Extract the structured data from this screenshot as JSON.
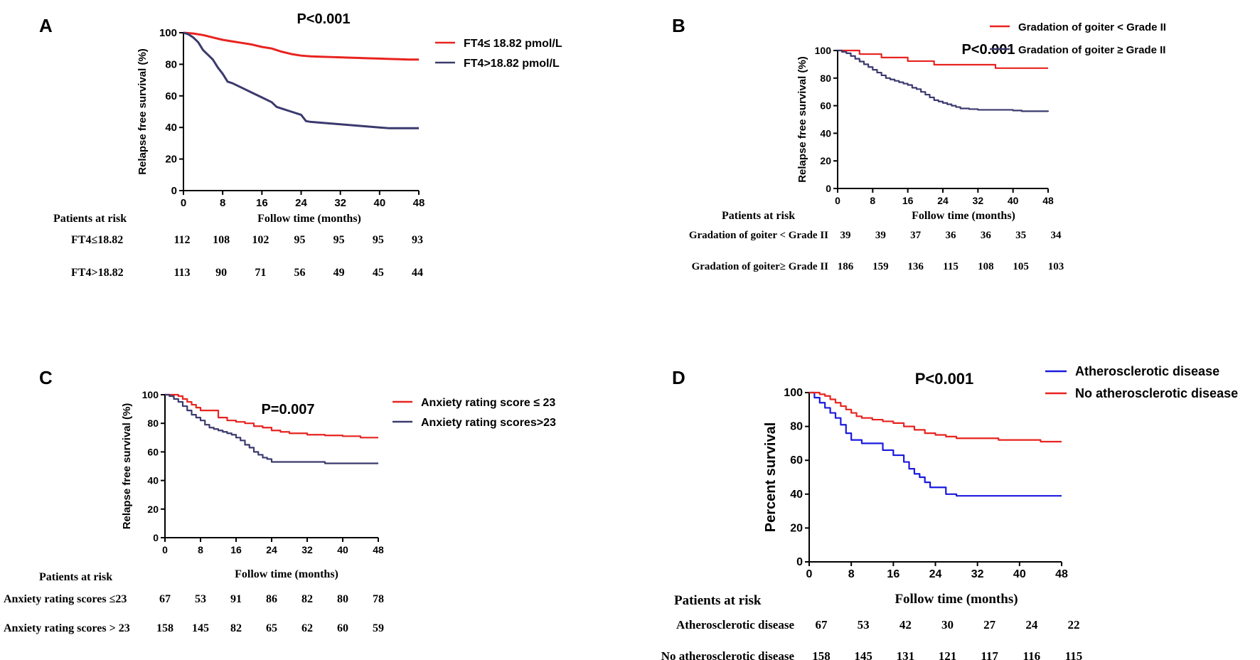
{
  "colors": {
    "red": "#e8231f",
    "navy": "#3a3a6e",
    "blue": "#1a1adf",
    "axis": "#000000"
  },
  "chart_data": [
    {
      "panel": "A",
      "type": "line",
      "title": "P<0.001",
      "xlabel": "Follow time (months)",
      "ylabel": "Relapse free survival (%)",
      "xlim": [
        0,
        48
      ],
      "ylim": [
        0,
        100
      ],
      "xticks": [
        "0",
        "8",
        "16",
        "24",
        "32",
        "40",
        "48"
      ],
      "yticks": [
        "0",
        "20",
        "40",
        "60",
        "80",
        "100"
      ],
      "legend_position": "top-right",
      "series": [
        {
          "name": "FT4≤ 18.82 pmol/L",
          "color": "#e8231f",
          "x": [
            0,
            2,
            4,
            6,
            8,
            10,
            12,
            14,
            16,
            18,
            20,
            22,
            24,
            26,
            28,
            30,
            32,
            34,
            36,
            38,
            40,
            42,
            44,
            46,
            48
          ],
          "y": [
            100,
            99.5,
            98.5,
            97,
            95.5,
            94.5,
            93.5,
            92.5,
            91,
            90,
            88,
            86.5,
            85.5,
            85,
            84.8,
            84.6,
            84.4,
            84.2,
            84,
            83.8,
            83.6,
            83.4,
            83.2,
            83,
            83
          ]
        },
        {
          "name": "FT4>18.82 pmol/L",
          "color": "#3a3a6e",
          "x": [
            0,
            1,
            2,
            3,
            4,
            5,
            6,
            7,
            8,
            9,
            10,
            12,
            14,
            16,
            18,
            19,
            20,
            22,
            24,
            25,
            26,
            28,
            30,
            32,
            34,
            36,
            38,
            40,
            42,
            44,
            46,
            48
          ],
          "y": [
            100,
            99,
            97,
            94,
            89,
            86,
            83,
            78,
            74,
            69,
            68,
            65,
            62,
            59,
            56,
            53,
            52,
            50,
            48,
            44,
            43.5,
            43,
            42.5,
            42,
            41.5,
            41,
            40.5,
            40,
            39.5,
            39.5,
            39.5,
            39.5
          ]
        }
      ],
      "risk_table": {
        "header": "Patients at risk",
        "rows": [
          {
            "label": "FT4≤18.82",
            "values": [
              "112",
              "108",
              "102",
              "95",
              "95",
              "95",
              "93"
            ]
          },
          {
            "label": "FT4>18.82",
            "values": [
              "113",
              "90",
              "71",
              "56",
              "49",
              "45",
              "44"
            ]
          }
        ]
      }
    },
    {
      "panel": "B",
      "type": "line",
      "title": "P<0.001",
      "xlabel": "Follow time (months)",
      "ylabel": "Relapse free survival (%)",
      "xlim": [
        0,
        48
      ],
      "ylim": [
        0,
        100
      ],
      "xticks": [
        "0",
        "8",
        "16",
        "24",
        "32",
        "40",
        "48"
      ],
      "yticks": [
        "0",
        "20",
        "40",
        "60",
        "80",
        "100"
      ],
      "legend_position": "top-right",
      "series": [
        {
          "name": "Gradation of goiter < Grade II",
          "color": "#e8231f",
          "step": true,
          "x": [
            0,
            5,
            8,
            10,
            14,
            16,
            22,
            36,
            48
          ],
          "y": [
            100,
            97.4,
            97.4,
            94.9,
            94.9,
            92.3,
            89.7,
            87.2,
            87.2
          ]
        },
        {
          "name": "Gradation of goiter ≥  Grade II",
          "color": "#3a3a6e",
          "step": true,
          "x": [
            0,
            1,
            2,
            3,
            4,
            5,
            6,
            7,
            8,
            9,
            10,
            11,
            12,
            13,
            14,
            15,
            16,
            17,
            18,
            19,
            20,
            21,
            22,
            23,
            24,
            25,
            26,
            27,
            28,
            30,
            32,
            34,
            36,
            38,
            40,
            42,
            44,
            46,
            48
          ],
          "y": [
            100,
            99,
            98,
            96,
            94,
            92,
            90,
            88,
            86,
            84,
            82,
            80,
            79,
            78,
            77,
            76,
            75,
            73,
            72,
            70,
            68,
            66,
            64,
            63,
            62,
            61,
            60,
            59,
            58,
            57.5,
            57,
            57,
            57,
            57,
            56.5,
            56,
            56,
            56,
            55.6
          ]
        }
      ],
      "risk_table": {
        "header": "Patients at risk",
        "rows": [
          {
            "label": "Gradation of goiter < Grade II",
            "values": [
              "39",
              "39",
              "37",
              "36",
              "36",
              "35",
              "34"
            ]
          },
          {
            "label": "Gradation of goiter≥ Grade II",
            "values": [
              "186",
              "159",
              "136",
              "115",
              "108",
              "105",
              "103"
            ]
          }
        ]
      }
    },
    {
      "panel": "C",
      "type": "line",
      "title": "P=0.007",
      "xlabel": "Follow time (months)",
      "ylabel": "Relapse free survival (%)",
      "xlim": [
        0,
        48
      ],
      "ylim": [
        0,
        100
      ],
      "xticks": [
        "0",
        "8",
        "16",
        "24",
        "32",
        "40",
        "48"
      ],
      "yticks": [
        "0",
        "20",
        "40",
        "60",
        "80",
        "100"
      ],
      "legend_position": "top-right",
      "series": [
        {
          "name": "Anxiety rating score ≤  23",
          "color": "#e8231f",
          "step": true,
          "x": [
            0,
            3,
            4,
            5,
            6,
            7,
            8,
            12,
            14,
            16,
            18,
            20,
            22,
            24,
            26,
            28,
            32,
            36,
            40,
            44,
            48
          ],
          "y": [
            100,
            99,
            97,
            95,
            93,
            91,
            89,
            84,
            82,
            81,
            80,
            78,
            77,
            75,
            74,
            73,
            72,
            71.5,
            71,
            70,
            70
          ]
        },
        {
          "name": "Anxiety rating scores>23",
          "color": "#3a3a6e",
          "step": true,
          "x": [
            0,
            1,
            2,
            3,
            4,
            5,
            6,
            7,
            8,
            9,
            10,
            11,
            12,
            13,
            14,
            15,
            16,
            17,
            18,
            19,
            20,
            21,
            22,
            23,
            24,
            28,
            32,
            36,
            40,
            48
          ],
          "y": [
            100,
            99,
            97,
            95,
            92,
            89,
            86,
            84,
            82,
            79,
            77,
            76,
            75,
            74,
            73,
            72,
            70,
            68,
            65,
            63,
            60,
            58,
            56,
            55,
            53,
            53,
            53,
            52,
            52,
            52
          ]
        }
      ],
      "risk_table": {
        "header": "Patients at risk",
        "rows": [
          {
            "label": "Anxiety rating  scores ≤23",
            "values": [
              "67",
              "53",
              "91",
              "86",
              "82",
              "80",
              "78"
            ]
          },
          {
            "label": "Anxiety rating scores > 23",
            "values": [
              "158",
              "145",
              "82",
              "65",
              "62",
              "60",
              "59"
            ]
          }
        ]
      }
    },
    {
      "panel": "D",
      "type": "line",
      "title": "P<0.001",
      "xlabel": "Follow time (months)",
      "ylabel": "Percent survival",
      "xlim": [
        0,
        48
      ],
      "ylim": [
        0,
        100
      ],
      "xticks": [
        "0",
        "8",
        "16",
        "24",
        "32",
        "40",
        "48"
      ],
      "yticks": [
        "0",
        "20",
        "40",
        "60",
        "80",
        "100"
      ],
      "legend_position": "top-right",
      "series": [
        {
          "name": "Atherosclerotic disease",
          "color": "#1a1adf",
          "step": true,
          "x": [
            0,
            1,
            2,
            3,
            4,
            5,
            6,
            7,
            8,
            10,
            14,
            16,
            18,
            19,
            20,
            21,
            22,
            23,
            24,
            26,
            28,
            30,
            48
          ],
          "y": [
            100,
            97,
            94,
            91,
            88,
            85,
            81,
            76,
            72,
            70,
            66,
            63,
            59,
            55,
            52,
            50,
            47,
            44,
            44,
            40,
            39,
            39,
            39
          ]
        },
        {
          "name": "No atherosclerotic disease",
          "color": "#e8231f",
          "step": true,
          "x": [
            0,
            2,
            3,
            4,
            5,
            6,
            7,
            8,
            9,
            10,
            12,
            14,
            16,
            18,
            20,
            22,
            24,
            26,
            28,
            32,
            36,
            40,
            44,
            48
          ],
          "y": [
            100,
            99,
            98,
            96,
            94,
            92,
            90,
            88,
            86,
            85,
            84,
            83,
            82,
            80,
            78,
            76,
            75,
            74,
            73,
            73,
            72,
            72,
            71,
            71
          ]
        }
      ],
      "risk_table": {
        "header": "Patients at risk",
        "rows": [
          {
            "label": "Atherosclerotic disease",
            "values": [
              "67",
              "53",
              "42",
              "30",
              "27",
              "24",
              "22"
            ]
          },
          {
            "label": "No atherosclerotic disease",
            "values": [
              "158",
              "145",
              "131",
              "121",
              "117",
              "116",
              "115"
            ]
          }
        ]
      }
    }
  ]
}
